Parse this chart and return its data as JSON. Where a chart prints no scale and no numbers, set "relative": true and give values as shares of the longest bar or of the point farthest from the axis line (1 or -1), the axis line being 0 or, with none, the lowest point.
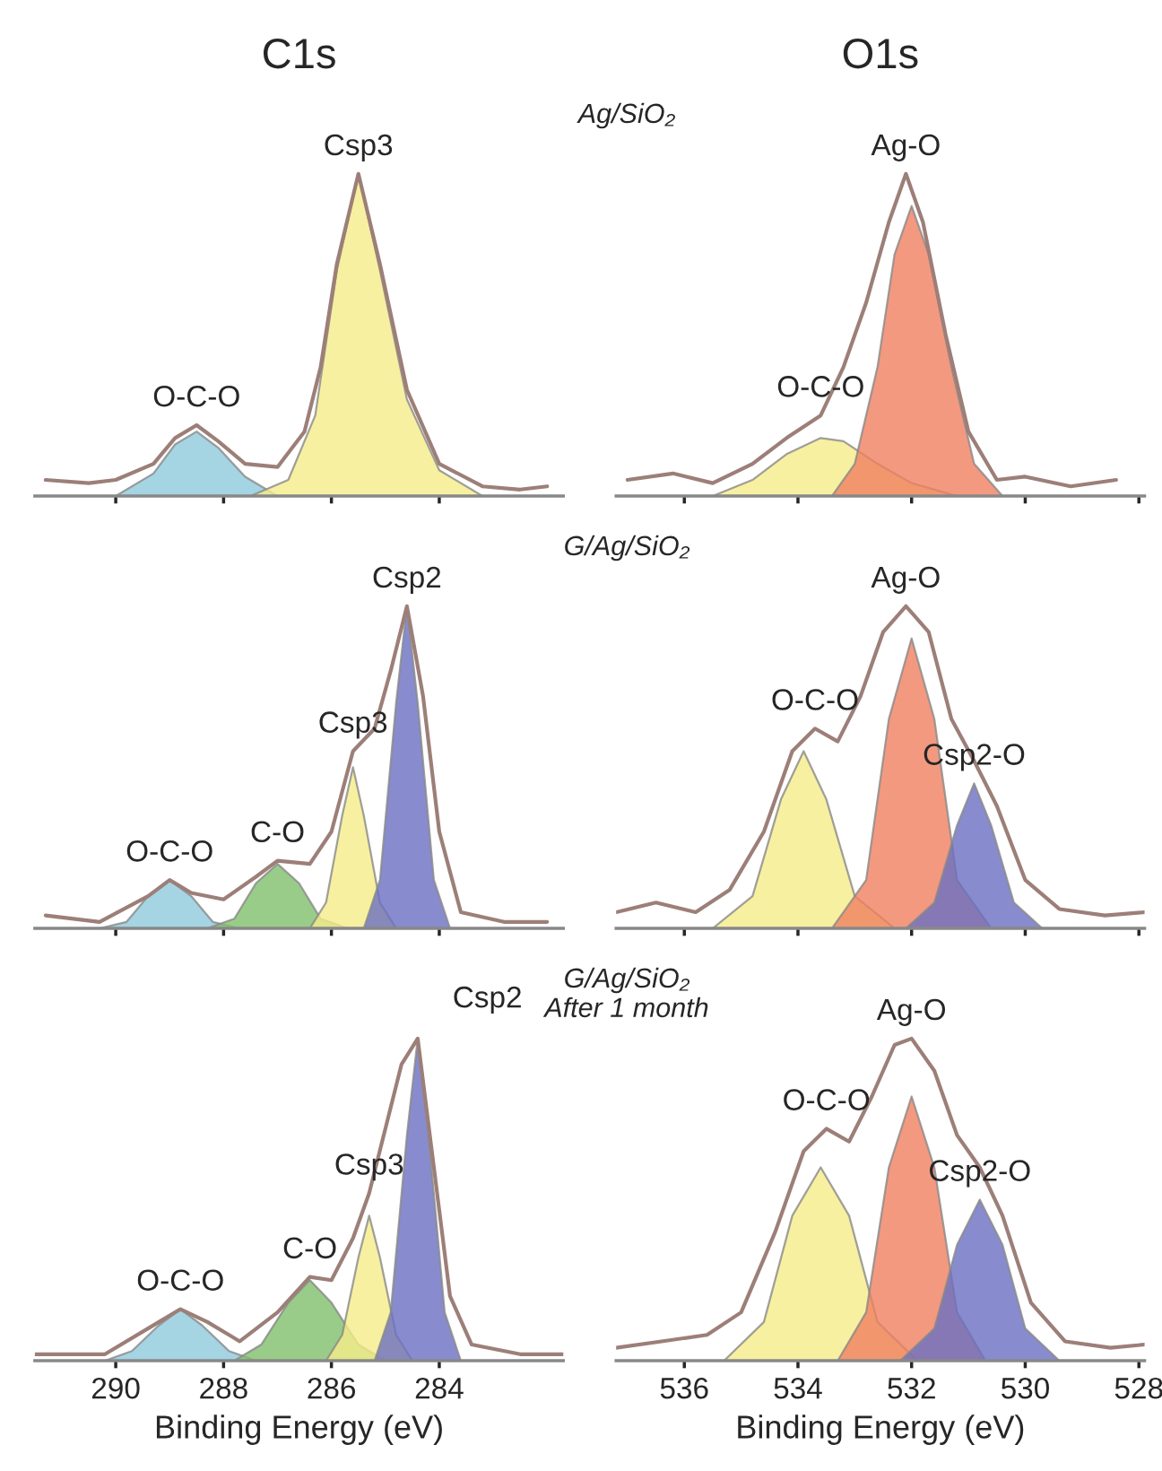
{
  "chart_data": [
    {
      "type": "area",
      "relative": true,
      "title": "C1s",
      "xlim": [
        291.5,
        281.7
      ],
      "xticks": [
        290,
        288,
        286,
        284
      ],
      "tick_labels": false,
      "annotations": [
        {
          "text": "O-C-O",
          "x": 288.5,
          "y": 0.22
        },
        {
          "text": "Csp3",
          "x": 285.5,
          "y": 1.0
        },
        "Ag/SiO₂"
      ],
      "series": [
        {
          "color": "#8ec9dc",
          "x": [
            290,
            289.3,
            288.9,
            288.5,
            288.1,
            287.6,
            287.0
          ],
          "values": [
            0,
            0.07,
            0.16,
            0.2,
            0.15,
            0.06,
            0
          ]
        },
        {
          "color": "#f5ec8a",
          "x": [
            287.5,
            286.8,
            286.3,
            285.9,
            285.5,
            285.1,
            284.6,
            284.0,
            283.2
          ],
          "values": [
            0,
            0.05,
            0.25,
            0.7,
            1.0,
            0.7,
            0.3,
            0.08,
            0
          ]
        },
        {
          "type": "line",
          "color": "#9c7f78",
          "x": [
            291.3,
            290.5,
            290,
            289.3,
            288.9,
            288.5,
            288.1,
            287.6,
            287,
            286.5,
            286.2,
            285.9,
            285.5,
            285.1,
            284.6,
            284,
            283.2,
            282.5,
            282
          ],
          "values": [
            0.05,
            0.04,
            0.05,
            0.1,
            0.18,
            0.22,
            0.17,
            0.1,
            0.09,
            0.2,
            0.4,
            0.72,
            1.0,
            0.72,
            0.33,
            0.1,
            0.03,
            0.02,
            0.03
          ]
        }
      ]
    },
    {
      "type": "area",
      "relative": true,
      "title": "O1s",
      "xlim": [
        537.2,
        527.9
      ],
      "xticks": [
        536,
        534,
        532,
        530,
        528
      ],
      "tick_labels": false,
      "annotations": [
        {
          "text": "O-C-O",
          "x": 533.6,
          "y": 0.25
        },
        {
          "text": "Ag-O",
          "x": 532.1,
          "y": 1.0
        }
      ],
      "series": [
        {
          "color": "#f5ec8a",
          "x": [
            535.5,
            534.8,
            534.2,
            533.6,
            533.2,
            532.6,
            532,
            531.2
          ],
          "values": [
            0,
            0.05,
            0.13,
            0.18,
            0.17,
            0.1,
            0.04,
            0
          ]
        },
        {
          "color": "#f08060",
          "x": [
            533.4,
            533,
            532.6,
            532.3,
            532.0,
            531.7,
            531.3,
            530.9,
            530.4
          ],
          "values": [
            0,
            0.1,
            0.4,
            0.75,
            0.9,
            0.75,
            0.4,
            0.1,
            0
          ]
        },
        {
          "type": "line",
          "color": "#9c7f78",
          "x": [
            537,
            536.2,
            535.5,
            534.8,
            534.2,
            533.6,
            533.2,
            532.8,
            532.4,
            532.1,
            531.8,
            531.4,
            531,
            530.5,
            530,
            529.2,
            528.4
          ],
          "values": [
            0.05,
            0.07,
            0.04,
            0.1,
            0.18,
            0.25,
            0.4,
            0.6,
            0.85,
            1.0,
            0.85,
            0.5,
            0.2,
            0.05,
            0.06,
            0.03,
            0.05
          ]
        }
      ]
    },
    {
      "type": "area",
      "relative": true,
      "xlim": [
        291.5,
        281.7
      ],
      "xticks": [
        290,
        288,
        286,
        284
      ],
      "tick_labels": false,
      "annotations": [
        {
          "text": "O-C-O",
          "x": 289,
          "y": 0.15
        },
        {
          "text": "C-O",
          "x": 287,
          "y": 0.21
        },
        {
          "text": "Csp3",
          "x": 285.6,
          "y": 0.55
        },
        {
          "text": "Csp2",
          "x": 284.6,
          "y": 1.0
        },
        "G/Ag/SiO₂"
      ],
      "series": [
        {
          "color": "#8ec9dc",
          "x": [
            290.3,
            289.8,
            289.4,
            289,
            288.6,
            288.2,
            287.7
          ],
          "values": [
            0,
            0.02,
            0.1,
            0.15,
            0.1,
            0.02,
            0
          ]
        },
        {
          "color": "#7fbf6a",
          "x": [
            288.3,
            287.8,
            287.4,
            287,
            286.6,
            286.2,
            285.7
          ],
          "values": [
            0,
            0.03,
            0.14,
            0.2,
            0.14,
            0.03,
            0
          ]
        },
        {
          "color": "#f5ec8a",
          "x": [
            286.4,
            286.1,
            285.8,
            285.6,
            285.4,
            285.1,
            284.8
          ],
          "values": [
            0,
            0.08,
            0.35,
            0.5,
            0.35,
            0.08,
            0
          ]
        },
        {
          "color": "#6a6fc2",
          "x": [
            285.4,
            285.1,
            284.8,
            284.6,
            284.4,
            284.1,
            283.8
          ],
          "values": [
            0,
            0.15,
            0.7,
            1,
            0.7,
            0.15,
            0
          ]
        },
        {
          "type": "line",
          "color": "#9c7f78",
          "x": [
            291.3,
            290.3,
            289.4,
            289,
            288.6,
            288.0,
            287.4,
            287,
            286.4,
            286.0,
            285.6,
            285.2,
            284.9,
            284.6,
            284.3,
            284.0,
            283.6,
            282.8,
            282
          ],
          "values": [
            0.04,
            0.02,
            0.1,
            0.15,
            0.11,
            0.09,
            0.16,
            0.21,
            0.2,
            0.3,
            0.55,
            0.62,
            0.8,
            1.0,
            0.72,
            0.3,
            0.05,
            0.02,
            0.02
          ]
        }
      ]
    },
    {
      "type": "area",
      "relative": true,
      "xlim": [
        537.2,
        527.9
      ],
      "xticks": [
        536,
        534,
        532,
        530,
        528
      ],
      "tick_labels": false,
      "annotations": [
        {
          "text": "O-C-O",
          "x": 533.7,
          "y": 0.62
        },
        {
          "text": "Ag-O",
          "x": 532.1,
          "y": 1.0
        },
        {
          "text": "Csp2-O",
          "x": 530.9,
          "y": 0.45
        }
      ],
      "series": [
        {
          "color": "#f5ec8a",
          "x": [
            535.5,
            534.8,
            534.3,
            533.9,
            533.5,
            533,
            532.3
          ],
          "values": [
            0,
            0.1,
            0.4,
            0.55,
            0.4,
            0.1,
            0
          ]
        },
        {
          "color": "#f08060",
          "x": [
            533.4,
            532.8,
            532.4,
            532,
            531.6,
            531.2,
            530.6
          ],
          "values": [
            0,
            0.15,
            0.65,
            0.9,
            0.65,
            0.15,
            0
          ]
        },
        {
          "color": "#6a6fc2",
          "x": [
            532.1,
            531.6,
            531.2,
            530.9,
            530.6,
            530.2,
            529.7
          ],
          "values": [
            0,
            0.08,
            0.32,
            0.45,
            0.32,
            0.08,
            0
          ]
        },
        {
          "type": "line",
          "color": "#9c7f78",
          "x": [
            537.2,
            536.5,
            535.8,
            535.2,
            534.6,
            534.1,
            533.7,
            533.3,
            532.9,
            532.5,
            532.1,
            531.7,
            531.3,
            530.9,
            530.5,
            530,
            529.4,
            528.6,
            527.9
          ],
          "values": [
            0.05,
            0.08,
            0.05,
            0.12,
            0.3,
            0.55,
            0.62,
            0.58,
            0.72,
            0.92,
            1.0,
            0.92,
            0.65,
            0.52,
            0.38,
            0.15,
            0.06,
            0.04,
            0.05
          ]
        }
      ]
    },
    {
      "type": "area",
      "relative": true,
      "xlim": [
        291.5,
        281.7
      ],
      "xticks": [
        290,
        288,
        286,
        284
      ],
      "xlabel": "Binding Energy (eV)",
      "annotations": [
        {
          "text": "O-C-O",
          "x": 288.8,
          "y": 0.16
        },
        {
          "text": "C-O",
          "x": 286.4,
          "y": 0.26
        },
        {
          "text": "Csp3",
          "x": 285.3,
          "y": 0.52
        },
        {
          "text": "Csp2",
          "x": 284.4,
          "y": 1.0
        },
        "G/Ag/SiO₂\nAfter 1 month"
      ],
      "series": [
        {
          "color": "#8ec9dc",
          "x": [
            290.2,
            289.7,
            289.2,
            288.8,
            288.4,
            287.9,
            287.4
          ],
          "values": [
            0,
            0.03,
            0.11,
            0.16,
            0.11,
            0.03,
            0
          ]
        },
        {
          "color": "#7fbf6a",
          "x": [
            287.8,
            287.3,
            286.8,
            286.4,
            286,
            285.5,
            285
          ],
          "values": [
            0,
            0.05,
            0.18,
            0.25,
            0.18,
            0.05,
            0
          ]
        },
        {
          "color": "#f5ec8a",
          "x": [
            286.1,
            285.8,
            285.5,
            285.3,
            285.1,
            284.8,
            284.5
          ],
          "values": [
            0,
            0.08,
            0.32,
            0.45,
            0.32,
            0.08,
            0
          ]
        },
        {
          "color": "#6a6fc2",
          "x": [
            285.2,
            284.9,
            284.6,
            284.4,
            284.2,
            283.9,
            283.6
          ],
          "values": [
            0,
            0.15,
            0.7,
            1,
            0.7,
            0.15,
            0
          ]
        },
        {
          "type": "line",
          "color": "#9c7f78",
          "x": [
            291.5,
            290.2,
            289.2,
            288.8,
            288.3,
            287.7,
            287,
            286.4,
            286,
            285.6,
            285.3,
            285,
            284.7,
            284.4,
            284.1,
            283.8,
            283.4,
            282.5,
            281.7
          ],
          "values": [
            0.02,
            0.02,
            0.12,
            0.16,
            0.12,
            0.06,
            0.15,
            0.26,
            0.25,
            0.38,
            0.52,
            0.72,
            0.92,
            1.0,
            0.6,
            0.2,
            0.05,
            0.02,
            0.02
          ]
        }
      ]
    },
    {
      "type": "area",
      "relative": true,
      "xlim": [
        537.2,
        527.9
      ],
      "xticks": [
        536,
        534,
        532,
        530,
        528
      ],
      "xlabel": "Binding Energy (eV)",
      "annotations": [
        {
          "text": "O-C-O",
          "x": 533.5,
          "y": 0.72
        },
        {
          "text": "Ag-O",
          "x": 532.0,
          "y": 1.0
        },
        {
          "text": "Csp2-O",
          "x": 530.8,
          "y": 0.5
        }
      ],
      "series": [
        {
          "color": "#f5ec8a",
          "x": [
            535.3,
            534.6,
            534.1,
            533.6,
            533.1,
            532.6,
            531.9
          ],
          "values": [
            0,
            0.12,
            0.45,
            0.6,
            0.45,
            0.12,
            0
          ]
        },
        {
          "color": "#f08060",
          "x": [
            533.3,
            532.8,
            532.4,
            532,
            531.6,
            531.2,
            530.7
          ],
          "values": [
            0,
            0.15,
            0.6,
            0.82,
            0.6,
            0.15,
            0
          ]
        },
        {
          "color": "#6a6fc2",
          "x": [
            532.2,
            531.6,
            531.2,
            530.8,
            530.4,
            530,
            529.4
          ],
          "values": [
            0,
            0.1,
            0.36,
            0.5,
            0.36,
            0.1,
            0
          ]
        },
        {
          "type": "line",
          "color": "#9c7f78",
          "x": [
            537.2,
            536.4,
            535.6,
            535,
            534.4,
            533.9,
            533.5,
            533.1,
            532.7,
            532.3,
            532,
            531.6,
            531.2,
            530.8,
            530.4,
            529.9,
            529.3,
            528.5,
            527.9
          ],
          "values": [
            0.04,
            0.06,
            0.08,
            0.15,
            0.4,
            0.65,
            0.72,
            0.68,
            0.82,
            0.98,
            1.0,
            0.9,
            0.7,
            0.6,
            0.45,
            0.18,
            0.06,
            0.04,
            0.05
          ]
        }
      ]
    }
  ]
}
